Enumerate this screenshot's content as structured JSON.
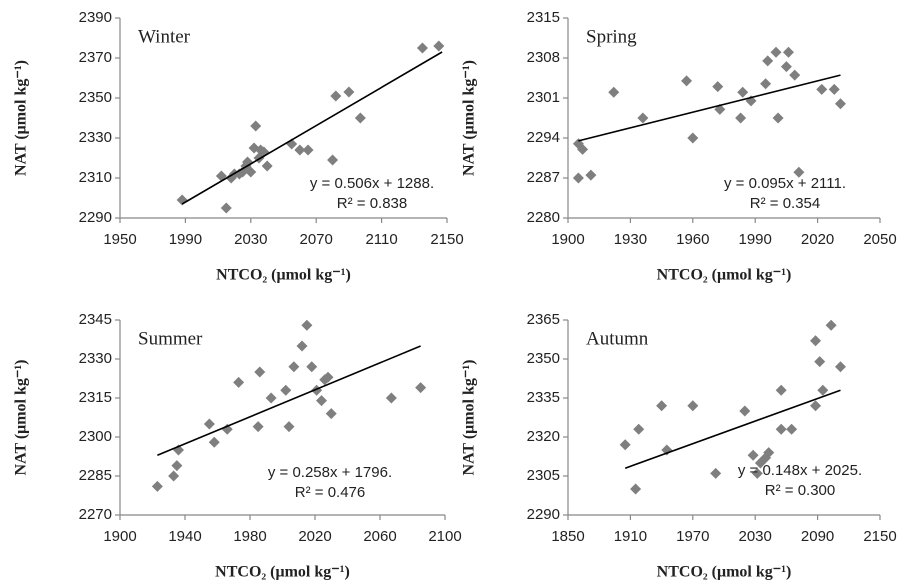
{
  "chart_data": [
    {
      "type": "scatter",
      "title": "Winter",
      "xlabel": "NTCO₂ (μmol kg⁻¹)",
      "ylabel": "NAT (μmol kg⁻¹)",
      "equation": "y = 0.506x + 1288.",
      "r2": "R² = 0.838",
      "color": "#7f7f7f",
      "xlim": [
        1950,
        2150
      ],
      "xticks": [
        1950,
        1990,
        2030,
        2070,
        2110,
        2150
      ],
      "ylim": [
        2290,
        2390
      ],
      "yticks": [
        2290,
        2310,
        2330,
        2350,
        2370,
        2390
      ],
      "x": [
        1988,
        2012,
        2015,
        2018,
        2020,
        2023,
        2025,
        2027,
        2028,
        2030,
        2032,
        2033,
        2035,
        2036,
        2038,
        2040,
        2055,
        2060,
        2065,
        2080,
        2082,
        2090,
        2097,
        2135,
        2145
      ],
      "y": [
        2299,
        2311,
        2295,
        2310,
        2312,
        2312,
        2313,
        2316,
        2318,
        2313,
        2325,
        2336,
        2320,
        2324,
        2323,
        2316,
        2327,
        2324,
        2324,
        2319,
        2351,
        2353,
        2340,
        2375,
        2376
      ],
      "trendline": {
        "x": [
          1988,
          2147
        ],
        "y": [
          2297,
          2373
        ]
      }
    },
    {
      "type": "scatter",
      "title": "Spring",
      "xlabel": "NTCO₂ (μmol kg⁻¹)",
      "ylabel": "NAT (μmol kg⁻¹)",
      "equation": "y = 0.095x + 2111.",
      "r2": "R² = 0.354",
      "color": "#7f7f7f",
      "xlim": [
        1900,
        2050
      ],
      "xticks": [
        1900,
        1930,
        1960,
        1990,
        2020,
        2050
      ],
      "ylim": [
        2280,
        2315
      ],
      "yticks": [
        2280,
        2287,
        2294,
        2301,
        2308,
        2315
      ],
      "x": [
        1905,
        1905,
        1907,
        1911,
        1922,
        1936,
        1957,
        1960,
        1972,
        1973,
        1983,
        1984,
        1988,
        1995,
        1996,
        2000,
        2001,
        2005,
        2006,
        2009,
        2011,
        2022,
        2028,
        2031
      ],
      "y": [
        2287,
        2293,
        2292,
        2287.5,
        2302,
        2297.5,
        2304,
        2294,
        2303,
        2299,
        2297.5,
        2302,
        2300.5,
        2303.5,
        2307.5,
        2309,
        2297.5,
        2306.5,
        2309,
        2305,
        2288,
        2302.5,
        2302.5,
        2300
      ],
      "trendline": {
        "x": [
          1905,
          2031
        ],
        "y": [
          2293.5,
          2305
        ]
      }
    },
    {
      "type": "scatter",
      "title": "Summer",
      "xlabel": "NTCO₂ (μmol kg⁻¹)",
      "ylabel": "NAT (μmol kg⁻¹)",
      "equation": "y = 0.258x + 1796.",
      "r2": "R² = 0.476",
      "color": "#7f7f7f",
      "xlim": [
        1900,
        2100
      ],
      "xticks": [
        1900,
        1940,
        1980,
        2020,
        2060,
        2100
      ],
      "ylim": [
        2270,
        2345
      ],
      "yticks": [
        2270,
        2285,
        2300,
        2315,
        2330,
        2345
      ],
      "x": [
        1923,
        1933,
        1935,
        1936,
        1955,
        1958,
        1966,
        1973,
        1985,
        1986,
        1993,
        2002,
        2004,
        2007,
        2012,
        2015,
        2018,
        2021,
        2024,
        2026,
        2028,
        2030,
        2067,
        2085
      ],
      "y": [
        2281,
        2285,
        2289,
        2295,
        2305,
        2298,
        2303,
        2321,
        2304,
        2325,
        2315,
        2318,
        2304,
        2327,
        2335,
        2343,
        2327,
        2318,
        2314,
        2322,
        2323,
        2309,
        2315,
        2319
      ],
      "trendline": {
        "x": [
          1923,
          2085
        ],
        "y": [
          2293,
          2335
        ]
      }
    },
    {
      "type": "scatter",
      "title": "Autumn",
      "xlabel": "NTCO₂ (μmol kg⁻¹)",
      "ylabel": "NAT (μmol kg⁻¹)",
      "equation": "y = 0.148x + 2025.",
      "r2": "R² = 0.300",
      "color": "#7f7f7f",
      "xlim": [
        1850,
        2150
      ],
      "xticks": [
        1850,
        1910,
        1970,
        2030,
        2090,
        2150
      ],
      "ylim": [
        2290,
        2365
      ],
      "yticks": [
        2290,
        2305,
        2320,
        2335,
        2350,
        2365
      ],
      "x": [
        1905,
        1915,
        1918,
        1940,
        1945,
        1970,
        1992,
        2020,
        2028,
        2032,
        2035,
        2040,
        2043,
        2055,
        2055,
        2065,
        2088,
        2088,
        2092,
        2095,
        2103,
        2112
      ],
      "y": [
        2317,
        2300,
        2323,
        2332,
        2315,
        2332,
        2306,
        2330,
        2313,
        2306,
        2310,
        2312,
        2314,
        2338,
        2323,
        2323,
        2357,
        2332,
        2349,
        2338,
        2363,
        2347
      ],
      "trendline": {
        "x": [
          1905,
          2112
        ],
        "y": [
          2308,
          2338
        ]
      }
    }
  ]
}
